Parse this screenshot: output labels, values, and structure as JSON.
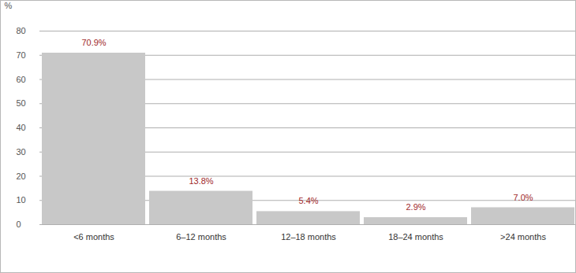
{
  "chart_data": {
    "type": "bar",
    "y_label": "%",
    "categories": [
      "<6 months",
      "6–12 months",
      "12–18 months",
      "18–24 months",
      ">24 months"
    ],
    "values": [
      70.9,
      13.8,
      5.4,
      2.9,
      7.0
    ],
    "value_labels": [
      "70.9%",
      "13.8%",
      "5.4%",
      "2.9%",
      "7.0%"
    ],
    "color": "#c8c8c8",
    "ylim": [
      0,
      80
    ],
    "yticks": [
      0,
      10,
      20,
      30,
      40,
      50,
      60,
      70,
      80
    ],
    "grid": true,
    "data_labels": true
  }
}
